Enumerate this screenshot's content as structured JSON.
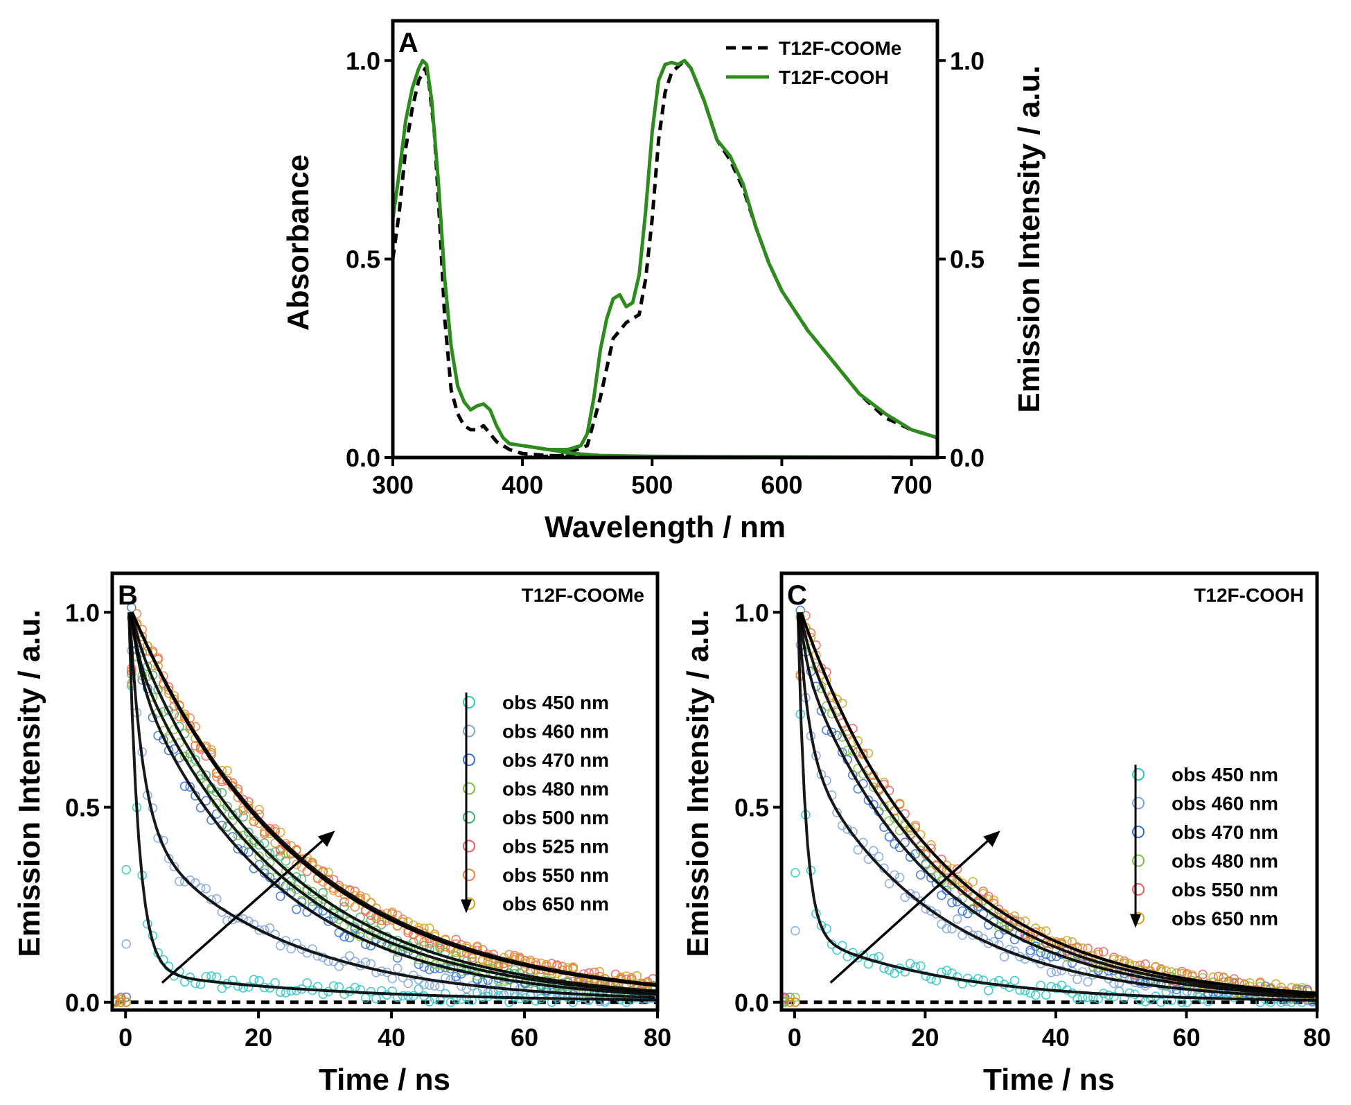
{
  "chart_data": [
    {
      "id": "A",
      "type": "line",
      "panel_label": "A",
      "xlabel": "Wavelength / nm",
      "ylabel_left": "Absorbance",
      "ylabel_right": "Emission Intensity / a.u.",
      "xlim": [
        300,
        720
      ],
      "ylim": [
        0,
        1.1
      ],
      "xticks": [
        300,
        400,
        500,
        600,
        700
      ],
      "yticks": [
        0.0,
        0.5,
        1.0
      ],
      "ytick_labels": [
        "0.0",
        "0.5",
        "1.0"
      ],
      "legend_position": "top-right",
      "series": [
        {
          "name": "T12F-COOMe",
          "style": "dashed",
          "color": "#000000",
          "absorbance": [
            [
              300,
              0.5
            ],
            [
              305,
              0.62
            ],
            [
              310,
              0.78
            ],
            [
              315,
              0.88
            ],
            [
              320,
              0.95
            ],
            [
              325,
              0.98
            ],
            [
              328,
              0.94
            ],
            [
              332,
              0.82
            ],
            [
              336,
              0.6
            ],
            [
              340,
              0.35
            ],
            [
              345,
              0.17
            ],
            [
              350,
              0.11
            ],
            [
              355,
              0.08
            ],
            [
              360,
              0.07
            ],
            [
              365,
              0.07
            ],
            [
              370,
              0.08
            ],
            [
              375,
              0.06
            ],
            [
              380,
              0.04
            ],
            [
              390,
              0.02
            ],
            [
              400,
              0.01
            ],
            [
              420,
              0.005
            ],
            [
              440,
              0.003
            ],
            [
              500,
              0.002
            ],
            [
              720,
              0.0
            ]
          ],
          "emission": [
            [
              400,
              0.0
            ],
            [
              430,
              0.005
            ],
            [
              450,
              0.03
            ],
            [
              460,
              0.15
            ],
            [
              470,
              0.3
            ],
            [
              480,
              0.34
            ],
            [
              490,
              0.36
            ],
            [
              495,
              0.45
            ],
            [
              500,
              0.6
            ],
            [
              505,
              0.8
            ],
            [
              510,
              0.92
            ],
            [
              515,
              0.97
            ],
            [
              520,
              0.985
            ],
            [
              525,
              1.0
            ],
            [
              530,
              0.98
            ],
            [
              540,
              0.9
            ],
            [
              550,
              0.8
            ],
            [
              560,
              0.75
            ],
            [
              570,
              0.68
            ],
            [
              580,
              0.58
            ],
            [
              590,
              0.49
            ],
            [
              600,
              0.42
            ],
            [
              620,
              0.32
            ],
            [
              640,
              0.24
            ],
            [
              660,
              0.16
            ],
            [
              680,
              0.1
            ],
            [
              700,
              0.07
            ],
            [
              720,
              0.05
            ]
          ]
        },
        {
          "name": "T12F-COOH",
          "style": "solid",
          "color": "#2e8b1e",
          "absorbance": [
            [
              300,
              0.6
            ],
            [
              305,
              0.72
            ],
            [
              310,
              0.85
            ],
            [
              315,
              0.93
            ],
            [
              320,
              0.98
            ],
            [
              323,
              1.0
            ],
            [
              326,
              0.99
            ],
            [
              330,
              0.9
            ],
            [
              335,
              0.7
            ],
            [
              340,
              0.45
            ],
            [
              345,
              0.28
            ],
            [
              350,
              0.18
            ],
            [
              355,
              0.14
            ],
            [
              360,
              0.12
            ],
            [
              365,
              0.13
            ],
            [
              370,
              0.135
            ],
            [
              375,
              0.12
            ],
            [
              380,
              0.08
            ],
            [
              385,
              0.05
            ],
            [
              390,
              0.035
            ],
            [
              400,
              0.03
            ],
            [
              420,
              0.02
            ],
            [
              440,
              0.01
            ],
            [
              460,
              0.005
            ],
            [
              500,
              0.003
            ],
            [
              720,
              0.0
            ]
          ],
          "emission": [
            [
              400,
              0.03
            ],
            [
              420,
              0.02
            ],
            [
              435,
              0.02
            ],
            [
              445,
              0.03
            ],
            [
              450,
              0.06
            ],
            [
              455,
              0.15
            ],
            [
              460,
              0.27
            ],
            [
              465,
              0.35
            ],
            [
              470,
              0.4
            ],
            [
              475,
              0.41
            ],
            [
              480,
              0.38
            ],
            [
              485,
              0.39
            ],
            [
              490,
              0.46
            ],
            [
              495,
              0.62
            ],
            [
              500,
              0.82
            ],
            [
              505,
              0.95
            ],
            [
              510,
              0.99
            ],
            [
              515,
              0.995
            ],
            [
              520,
              0.99
            ],
            [
              525,
              1.0
            ],
            [
              530,
              0.98
            ],
            [
              540,
              0.9
            ],
            [
              550,
              0.8
            ],
            [
              560,
              0.76
            ],
            [
              570,
              0.69
            ],
            [
              580,
              0.58
            ],
            [
              590,
              0.49
            ],
            [
              600,
              0.42
            ],
            [
              620,
              0.32
            ],
            [
              640,
              0.24
            ],
            [
              660,
              0.16
            ],
            [
              680,
              0.11
            ],
            [
              700,
              0.07
            ],
            [
              720,
              0.05
            ]
          ]
        }
      ]
    },
    {
      "id": "B",
      "type": "scatter",
      "panel_label": "B",
      "title": "T12F-COOMe",
      "xlabel": "Time / ns",
      "ylabel": "Emission Intensity / a.u.",
      "xlim": [
        -2,
        80
      ],
      "ylim": [
        -0.02,
        1.1
      ],
      "xticks": [
        0,
        20,
        40,
        60,
        80
      ],
      "yticks": [
        0.0,
        0.5,
        1.0
      ],
      "ytick_labels": [
        "0.0",
        "0.5",
        "1.0"
      ],
      "legend_position": "right",
      "arrow_note": "trend arrow from short to long wavelength",
      "series": [
        {
          "name": "obs 450 nm",
          "color": "#26c6c6",
          "peak_time": 0.5,
          "components": [
            [
              0.92,
              1.5
            ],
            [
              0.08,
              30
            ]
          ]
        },
        {
          "name": "obs 460 nm",
          "color": "#7fa3d9",
          "peak_time": 0.6,
          "components": [
            [
              0.55,
              2.0
            ],
            [
              0.45,
              22
            ]
          ]
        },
        {
          "name": "obs 470 nm",
          "color": "#2f6fd6",
          "peak_time": 0.8,
          "components": [
            [
              0.15,
              1.5
            ],
            [
              0.85,
              21
            ]
          ]
        },
        {
          "name": "obs 480 nm",
          "color": "#7cc242",
          "peak_time": 0.9,
          "components": [
            [
              0.1,
              1.0
            ],
            [
              0.9,
              22
            ]
          ]
        },
        {
          "name": "obs 500 nm",
          "color": "#3fae6f",
          "peak_time": 1.0,
          "components": [
            [
              0.05,
              1.0
            ],
            [
              0.95,
              22.5
            ]
          ]
        },
        {
          "name": "obs 525 nm",
          "color": "#f05a5a",
          "peak_time": 1.0,
          "components": [
            [
              1.0,
              25
            ]
          ]
        },
        {
          "name": "obs 550 nm",
          "color": "#f0803c",
          "peak_time": 1.0,
          "components": [
            [
              1.0,
              25
            ]
          ]
        },
        {
          "name": "obs 650 nm",
          "color": "#d4a017",
          "peak_time": 1.0,
          "components": [
            [
              1.0,
              25.5
            ]
          ]
        }
      ]
    },
    {
      "id": "C",
      "type": "scatter",
      "panel_label": "C",
      "title": "T12F-COOH",
      "xlabel": "Time / ns",
      "ylabel": "Emission Intensity / a.u.",
      "xlim": [
        -2,
        80
      ],
      "ylim": [
        -0.02,
        1.1
      ],
      "xticks": [
        0,
        20,
        40,
        60,
        80
      ],
      "yticks": [
        0.0,
        0.5,
        1.0
      ],
      "ytick_labels": [
        "0.0",
        "0.5",
        "1.0"
      ],
      "legend_position": "right",
      "arrow_note": "trend arrow from short to long wavelength",
      "series": [
        {
          "name": "obs 450 nm",
          "color": "#26c6c6",
          "peak_time": 0.5,
          "components": [
            [
              0.82,
              1.2
            ],
            [
              0.18,
              22
            ]
          ]
        },
        {
          "name": "obs 460 nm",
          "color": "#7fa3d9",
          "peak_time": 0.6,
          "components": [
            [
              0.35,
              1.5
            ],
            [
              0.65,
              20
            ]
          ]
        },
        {
          "name": "obs 470 nm",
          "color": "#2f6fd6",
          "peak_time": 0.8,
          "components": [
            [
              0.12,
              1.0
            ],
            [
              0.88,
              20
            ]
          ]
        },
        {
          "name": "obs 480 nm",
          "color": "#7cc242",
          "peak_time": 0.9,
          "components": [
            [
              0.05,
              1.0
            ],
            [
              0.95,
              20.5
            ]
          ]
        },
        {
          "name": "obs 550 nm",
          "color": "#f05a5a",
          "peak_time": 1.0,
          "components": [
            [
              1.0,
              21
            ]
          ]
        },
        {
          "name": "obs 650 nm",
          "color": "#d4a017",
          "peak_time": 1.0,
          "components": [
            [
              1.0,
              21
            ]
          ]
        }
      ]
    }
  ]
}
